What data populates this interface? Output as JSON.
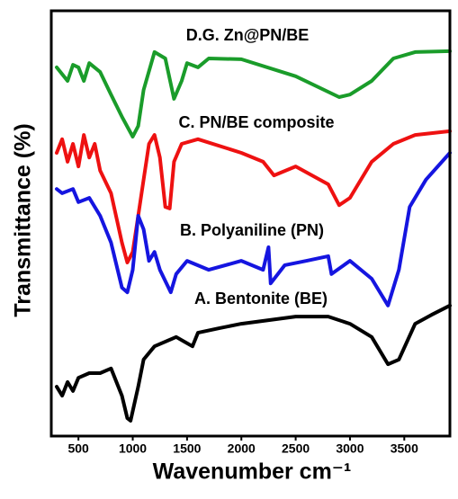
{
  "chart_data": {
    "type": "line",
    "xlabel": "Wavenumber cm⁻¹",
    "ylabel": "Transmittance (%)",
    "xlim": [
      250,
      3920
    ],
    "ylim": [
      0,
      100
    ],
    "xticks": [
      500,
      1000,
      1500,
      2000,
      2500,
      3000,
      3500
    ],
    "annotations": [
      "D.G. Zn@PN/BE",
      "C. PN/BE composite",
      "B. Polyaniline (PN)",
      "A. Bentonite (BE)"
    ],
    "series": [
      {
        "color": "#1a9c2a",
        "x": [
          300,
          400,
          450,
          500,
          550,
          600,
          700,
          800,
          900,
          1000,
          1050,
          1100,
          1200,
          1300,
          1380,
          1450,
          1500,
          1600,
          1700,
          2000,
          2500,
          2900,
          3000,
          3200,
          3400,
          3600,
          3920
        ],
        "values": [
          86.7,
          83.5,
          87.3,
          86.7,
          83.5,
          87.7,
          85.6,
          80.3,
          75.1,
          70.4,
          72.9,
          81.4,
          90.3,
          88.8,
          79.3,
          83.5,
          87.7,
          86.7,
          88.8,
          88.6,
          84.6,
          79.7,
          80.3,
          83.5,
          88.8,
          90.3,
          90.5
        ]
      },
      {
        "color": "#ee1111",
        "x": [
          300,
          350,
          400,
          450,
          500,
          550,
          600,
          650,
          700,
          800,
          900,
          950,
          1000,
          1050,
          1100,
          1150,
          1200,
          1250,
          1300,
          1340,
          1380,
          1450,
          1600,
          2000,
          2200,
          2300,
          2500,
          2800,
          2900,
          3000,
          3200,
          3400,
          3600,
          3920
        ],
        "values": [
          66.6,
          69.8,
          64.5,
          68.7,
          63.4,
          70.8,
          65.5,
          68.7,
          62.4,
          57.1,
          45.5,
          40.8,
          43.3,
          51.8,
          60.3,
          68.7,
          70.8,
          65.5,
          53.9,
          53.5,
          64.5,
          68.7,
          69.8,
          66.6,
          64.5,
          61.3,
          63.4,
          59.2,
          54.3,
          56.0,
          64.5,
          68.7,
          70.8,
          71.7
        ]
      },
      {
        "color": "#1515e0",
        "x": [
          300,
          350,
          450,
          500,
          600,
          700,
          800,
          900,
          950,
          1000,
          1050,
          1100,
          1150,
          1200,
          1250,
          1350,
          1400,
          1500,
          1700,
          2000,
          2200,
          2250,
          2270,
          2400,
          2600,
          2800,
          2830,
          3000,
          3200,
          3350,
          3450,
          3550,
          3700,
          3920
        ],
        "values": [
          58.1,
          57.1,
          58.1,
          55.0,
          56.0,
          51.8,
          45.5,
          34.9,
          33.8,
          39.1,
          51.8,
          48.6,
          41.2,
          43.3,
          39.1,
          33.8,
          38.1,
          41.2,
          39.1,
          41.2,
          39.1,
          44.4,
          35.9,
          40.2,
          41.2,
          42.3,
          38.1,
          41.2,
          37.0,
          30.7,
          39.1,
          53.9,
          60.3,
          66.6
        ]
      },
      {
        "color": "#000000",
        "x": [
          300,
          350,
          400,
          450,
          500,
          600,
          700,
          800,
          900,
          950,
          980,
          1050,
          1100,
          1200,
          1400,
          1550,
          1600,
          1800,
          2000,
          2500,
          2800,
          3000,
          3200,
          3350,
          3450,
          3600,
          3750,
          3920
        ],
        "values": [
          11.6,
          9.5,
          12.7,
          10.6,
          13.7,
          14.8,
          14.8,
          15.9,
          9.5,
          4.2,
          3.6,
          11.6,
          18.0,
          21.1,
          23.3,
          21.1,
          24.3,
          25.4,
          26.4,
          28.1,
          28.1,
          26.4,
          23.3,
          16.9,
          18.0,
          26.4,
          28.5,
          30.7
        ]
      }
    ]
  }
}
